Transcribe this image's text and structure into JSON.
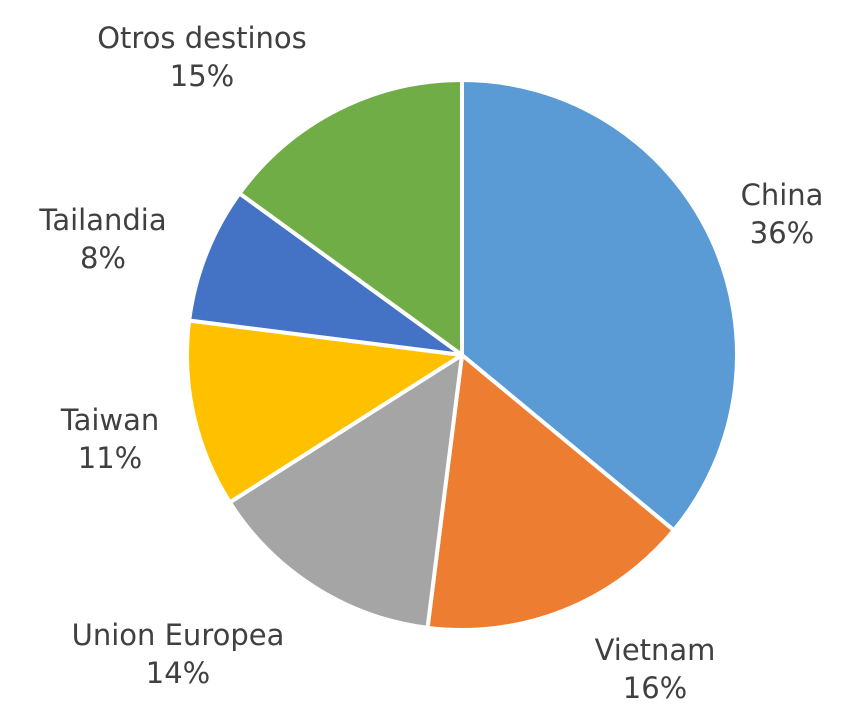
{
  "chart_data": {
    "type": "pie",
    "categories": [
      "China",
      "Vietnam",
      "Union Europea",
      "Taiwan",
      "Tailandia",
      "Otros destinos"
    ],
    "values": [
      36,
      16,
      14,
      11,
      8,
      15
    ],
    "value_labels": [
      "36%",
      "16%",
      "14%",
      "11%",
      "8%",
      "15%"
    ],
    "colors": [
      "#5b9bd5",
      "#ed7d31",
      "#a5a5a5",
      "#ffc000",
      "#4472c4",
      "#70ad47"
    ]
  }
}
